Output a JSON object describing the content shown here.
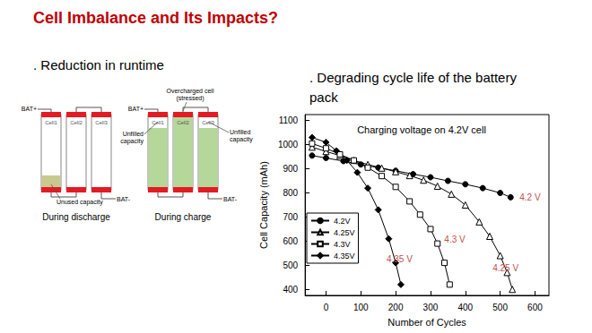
{
  "title": "Cell Imbalance and Its Impacts?",
  "bullets": [
    ". Reduction in runtime",
    ". Degrading cycle life of the battery pack"
  ],
  "diagram": {
    "discharge": {
      "caption": "During discharge",
      "cells": [
        "Cell1",
        "Cell2",
        "Cell3"
      ],
      "positive": "BAT+",
      "negative": "BAT-",
      "note": "Unused capacity"
    },
    "charge": {
      "caption": "During charge",
      "cells": [
        "Cell1",
        "Cell2",
        "Cell3"
      ],
      "positive": "BAT+",
      "negative": "BAT-",
      "overcharged": [
        "Overcharged cell",
        "(stressed)"
      ],
      "unfilled": [
        "Unfilled capacity",
        "Unfilled capacity"
      ]
    }
  },
  "chart_data": {
    "type": "line",
    "title": "Charging voltage on 4.2V cell",
    "x_label": "Number of Cycles",
    "y_label": "Cell Capacity (mAh)",
    "xlim": [
      -60,
      640
    ],
    "xticks": [
      0,
      100,
      200,
      300,
      400,
      500,
      600
    ],
    "ylim": [
      375,
      1125
    ],
    "yticks": [
      400,
      500,
      600,
      700,
      800,
      900,
      1000,
      1100
    ],
    "grid": false,
    "legend": "left",
    "series": [
      {
        "name": "4.2V",
        "label": "4.2 V",
        "color": "#000000",
        "marker": "filled-circle",
        "x": [
          -40,
          0,
          50,
          100,
          150,
          200,
          250,
          300,
          350,
          400,
          450,
          500,
          530
        ],
        "values": [
          955,
          945,
          932,
          918,
          905,
          892,
          878,
          865,
          850,
          836,
          820,
          800,
          782
        ]
      },
      {
        "name": "4.25V",
        "label": "4.25 V",
        "color": "#000000",
        "marker": "open-triangle",
        "x": [
          -40,
          0,
          40,
          80,
          120,
          160,
          200,
          240,
          280,
          320,
          360,
          400,
          440,
          470,
          500,
          520,
          535
        ],
        "values": [
          990,
          972,
          955,
          935,
          918,
          903,
          888,
          872,
          853,
          828,
          795,
          750,
          680,
          620,
          540,
          470,
          400
        ]
      },
      {
        "name": "4.3V",
        "label": "4.3 V",
        "color": "#000000",
        "marker": "open-square",
        "x": [
          -40,
          0,
          40,
          80,
          120,
          160,
          200,
          240,
          270,
          300,
          320,
          340,
          355
        ],
        "values": [
          1005,
          985,
          960,
          935,
          905,
          870,
          825,
          765,
          710,
          650,
          590,
          510,
          420
        ]
      },
      {
        "name": "4.35V",
        "label": "4.35 V",
        "color": "#000000",
        "marker": "filled-diamond",
        "x": [
          -40,
          0,
          30,
          60,
          90,
          120,
          150,
          180,
          200,
          215
        ],
        "values": [
          1030,
          1010,
          975,
          935,
          885,
          820,
          730,
          610,
          510,
          420
        ]
      }
    ]
  }
}
